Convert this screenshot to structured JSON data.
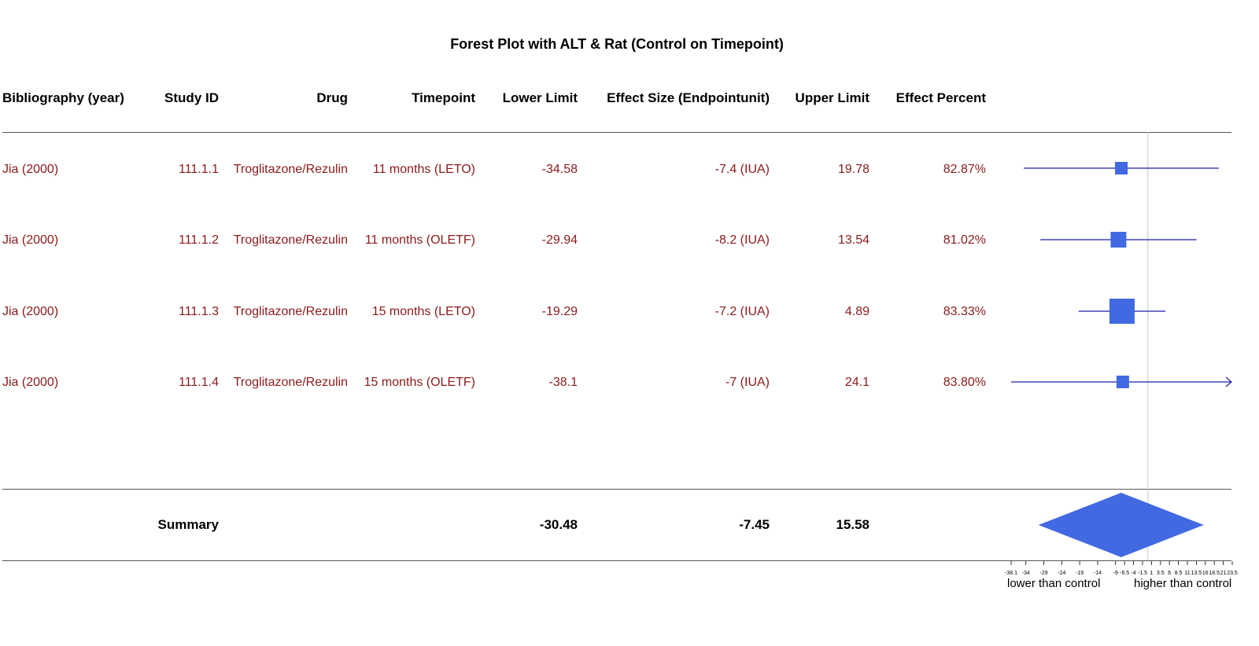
{
  "title": "Forest Plot with ALT & Rat (Control on Timepoint)",
  "headers": {
    "bibliography": "Bibliography (year)",
    "study_id": "Study ID",
    "drug": "Drug",
    "timepoint": "Timepoint",
    "lower": "Lower Limit",
    "effect": "Effect Size (Endpointunit)",
    "upper": "Upper Limit",
    "percent": "Effect Percent"
  },
  "rows": [
    {
      "bibliography": "Jia (2000)",
      "study_id": "111.1.1",
      "drug": "Troglitazone/Rezulin",
      "timepoint": "11 months (LETO)",
      "lower": "-34.58",
      "effect": "-7.4 (IUA)",
      "upper": "19.78",
      "percent": "82.87%"
    },
    {
      "bibliography": "Jia (2000)",
      "study_id": "111.1.2",
      "drug": "Troglitazone/Rezulin",
      "timepoint": "11 months (OLETF)",
      "lower": "-29.94",
      "effect": "-8.2 (IUA)",
      "upper": "13.54",
      "percent": "81.02%"
    },
    {
      "bibliography": "Jia (2000)",
      "study_id": "111.1.3",
      "drug": "Troglitazone/Rezulin",
      "timepoint": "15 months (LETO)",
      "lower": "-19.29",
      "effect": "-7.2 (IUA)",
      "upper": "4.89",
      "percent": "83.33%"
    },
    {
      "bibliography": "Jia (2000)",
      "study_id": "111.1.4",
      "drug": "Troglitazone/Rezulin",
      "timepoint": "15 months (OLETF)",
      "lower": "-38.1",
      "effect": "-7 (IUA)",
      "upper": "24.1",
      "percent": "83.80%"
    }
  ],
  "summary": {
    "label": "Summary",
    "lower": "-30.48",
    "effect": "-7.45",
    "upper": "15.58"
  },
  "axis": {
    "lower_label": "lower than control",
    "higher_label": "higher than control",
    "ticks": [
      "-38.1",
      "-34",
      "-29",
      "-24",
      "-19",
      "-14",
      "-9",
      "-6.5",
      "-4",
      "-1.5",
      "1",
      "3.5",
      "6",
      "8.5",
      "11",
      "13.5",
      "16",
      "18.5",
      "21",
      "23.5"
    ]
  },
  "colors": {
    "text_row": "#8b1a1a",
    "marker": "#4169e1",
    "ci_line": "#1c1caa",
    "reference_line": "#c8c8c8"
  },
  "chart_data": {
    "type": "forest",
    "title": "Forest Plot with ALT & Rat (Control on Timepoint)",
    "xlim": [
      -38.1,
      23.5
    ],
    "reference_value": 0,
    "series": [
      {
        "study_id": "111.1.1",
        "lower": -34.58,
        "effect": -7.4,
        "upper": 19.78,
        "weight_pct": 82.87
      },
      {
        "study_id": "111.1.2",
        "lower": -29.94,
        "effect": -8.2,
        "upper": 13.54,
        "weight_pct": 81.02
      },
      {
        "study_id": "111.1.3",
        "lower": -19.29,
        "effect": -7.2,
        "upper": 4.89,
        "weight_pct": 83.33
      },
      {
        "study_id": "111.1.4",
        "lower": -38.1,
        "effect": -7,
        "upper": 24.1,
        "weight_pct": 83.8
      }
    ],
    "summary": {
      "lower": -30.48,
      "effect": -7.45,
      "upper": 15.58
    }
  }
}
